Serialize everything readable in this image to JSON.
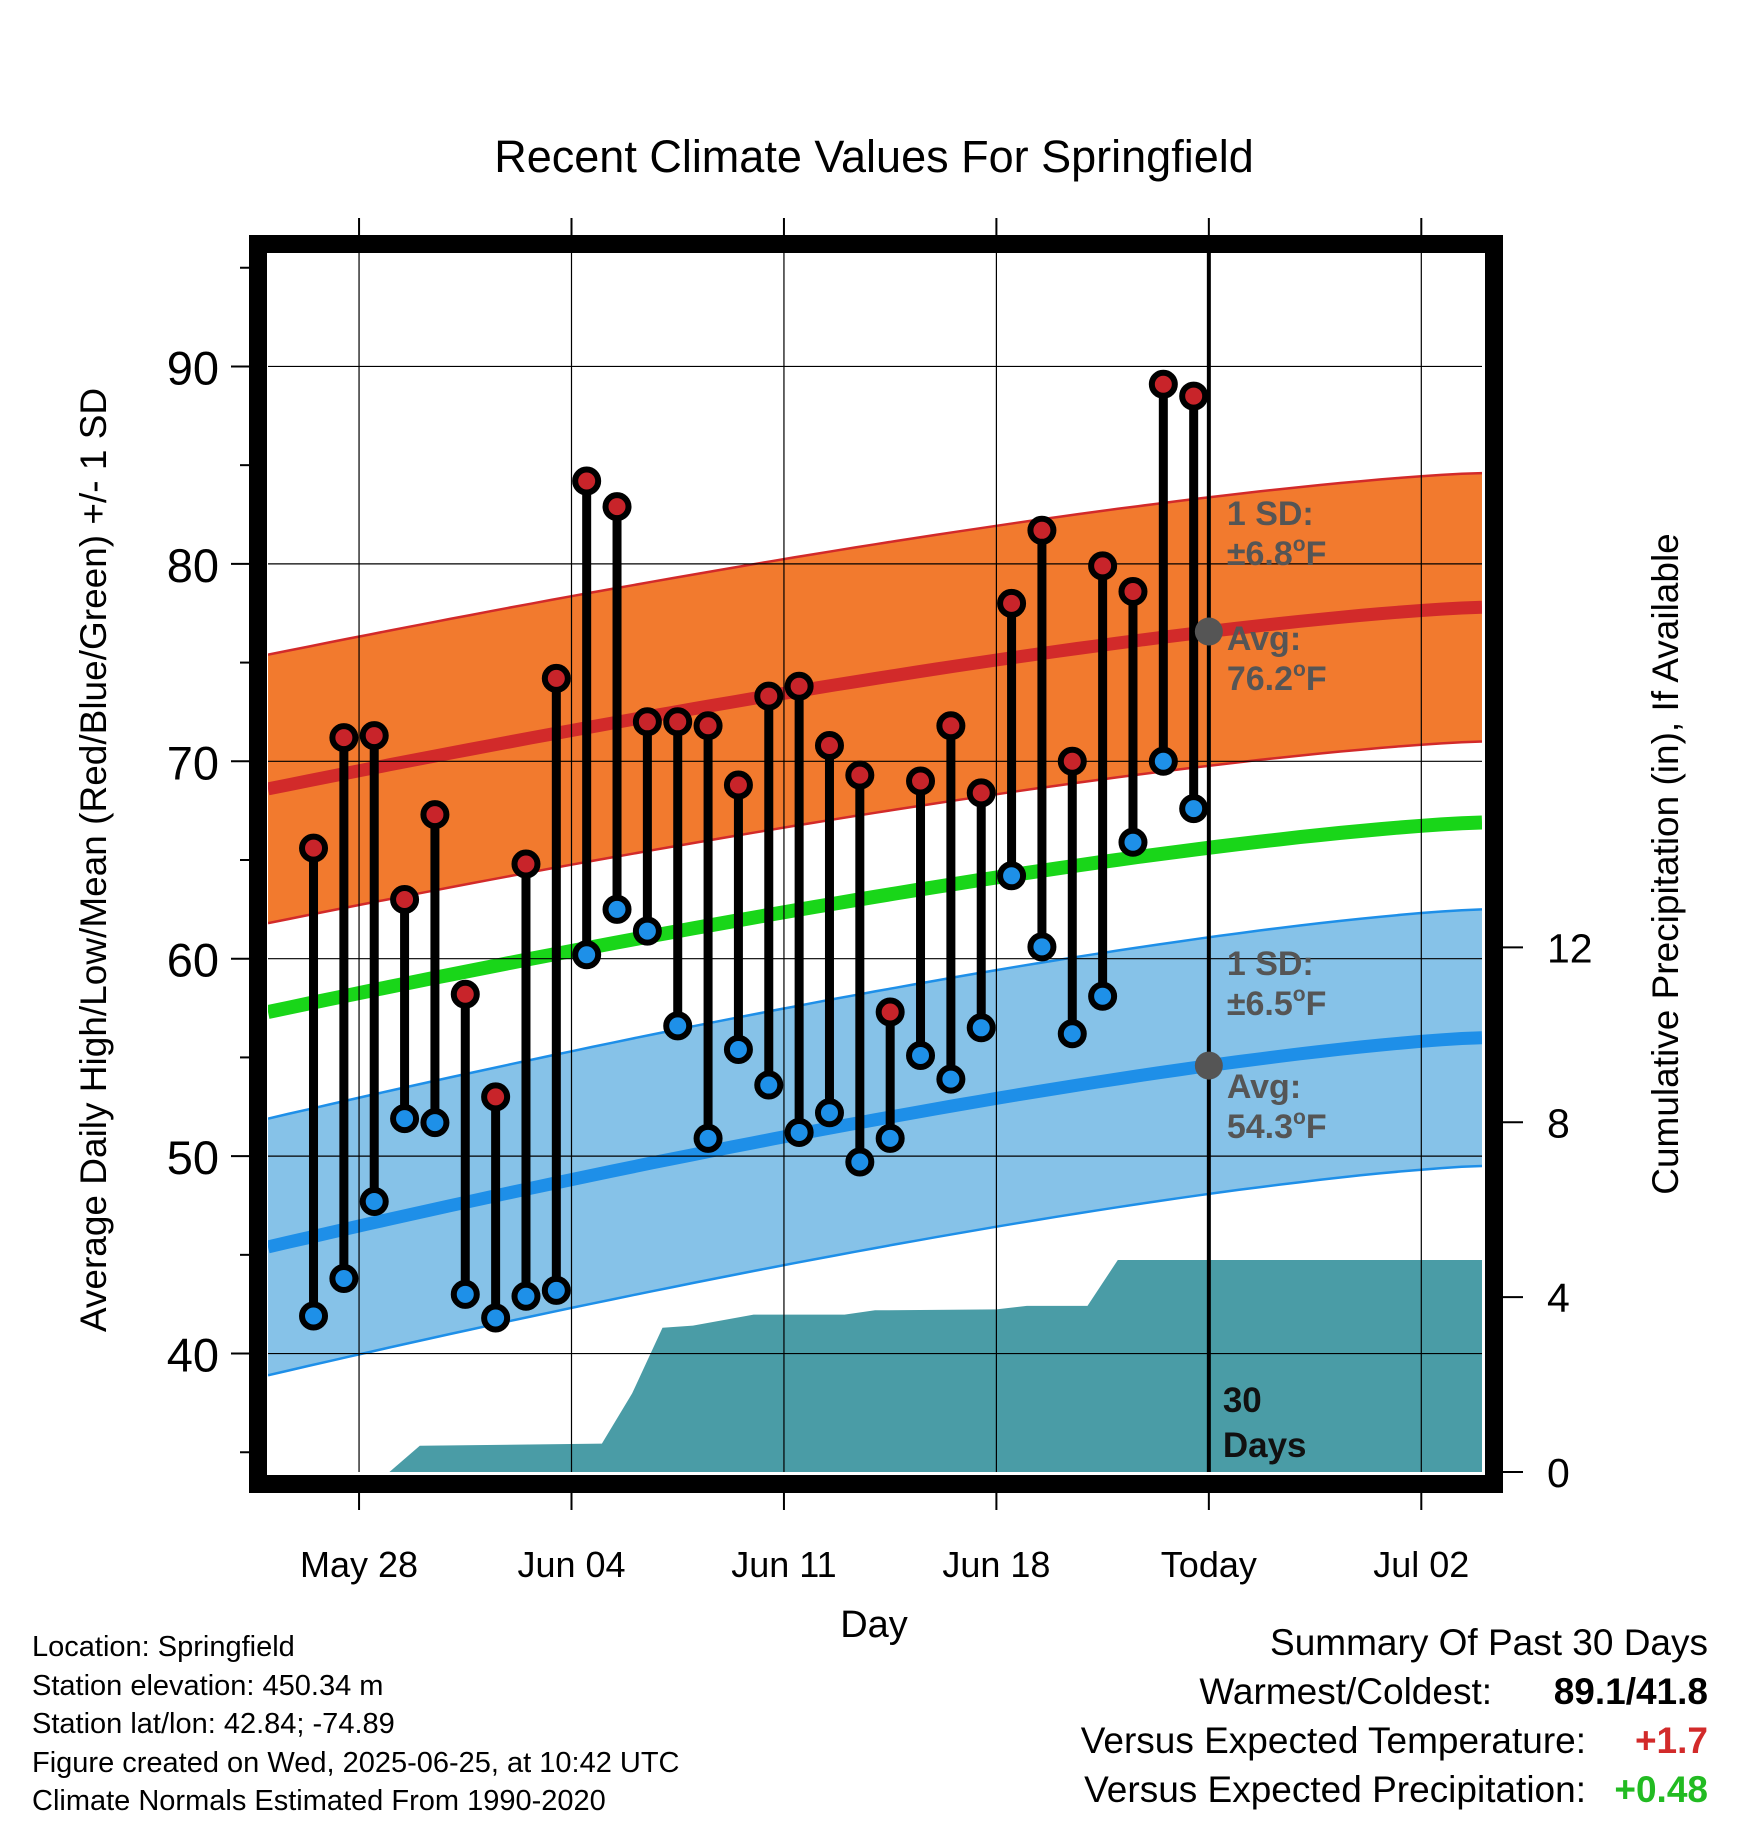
{
  "chart_data": {
    "type": "line",
    "title": "Recent Climate Values For Springfield",
    "xlabel": "Day",
    "ylabel_left": "Average Daily High/Low/Mean (Red/Blue/Green) +/- 1 SD",
    "ylabel_right": "Cumulative Precipitation (in), If Available",
    "xlim": [
      "2025-05-25",
      "2025-07-04"
    ],
    "ylim_left": [
      34,
      96
    ],
    "ylim_right": [
      0,
      28
    ],
    "x_ticks": [
      {
        "date": "2025-05-28",
        "label": "May 28"
      },
      {
        "date": "2025-06-04",
        "label": "Jun 04"
      },
      {
        "date": "2025-06-11",
        "label": "Jun 11"
      },
      {
        "date": "2025-06-18",
        "label": "Jun 18"
      },
      {
        "date": "2025-06-25",
        "label": "Today"
      },
      {
        "date": "2025-07-02",
        "label": "Jul 02"
      }
    ],
    "y_ticks_left": [
      40,
      50,
      60,
      70,
      80,
      90
    ],
    "y_ticks_right": [
      0,
      4,
      8,
      12
    ],
    "grid": true,
    "today": "2025-06-25",
    "normals": {
      "start": "2025-05-25",
      "end": "2025-07-04",
      "high_avg": [
        68.6,
        77.8
      ],
      "high_sd": 6.8,
      "low_avg": [
        45.4,
        56.0
      ],
      "low_sd": 6.5,
      "mean_avg": [
        57.3,
        66.9
      ]
    },
    "daily": [
      {
        "date": "2025-05-26",
        "high": 65.6,
        "low": 41.9
      },
      {
        "date": "2025-05-27",
        "high": 71.2,
        "low": 43.8
      },
      {
        "date": "2025-05-28",
        "high": 71.3,
        "low": 47.7
      },
      {
        "date": "2025-05-29",
        "high": 63.0,
        "low": 51.9
      },
      {
        "date": "2025-05-30",
        "high": 67.3,
        "low": 51.7
      },
      {
        "date": "2025-05-31",
        "high": 58.2,
        "low": 43.0
      },
      {
        "date": "2025-06-01",
        "high": 53.0,
        "low": 41.8
      },
      {
        "date": "2025-06-02",
        "high": 64.8,
        "low": 42.9
      },
      {
        "date": "2025-06-03",
        "high": 74.2,
        "low": 43.2
      },
      {
        "date": "2025-06-04",
        "high": 84.2,
        "low": 60.2
      },
      {
        "date": "2025-06-05",
        "high": 82.9,
        "low": 62.5
      },
      {
        "date": "2025-06-06",
        "high": 72.0,
        "low": 61.4
      },
      {
        "date": "2025-06-07",
        "high": 72.0,
        "low": 56.6
      },
      {
        "date": "2025-06-08",
        "high": 71.8,
        "low": 50.9
      },
      {
        "date": "2025-06-09",
        "high": 68.8,
        "low": 55.4
      },
      {
        "date": "2025-06-10",
        "high": 73.3,
        "low": 53.6
      },
      {
        "date": "2025-06-11",
        "high": 73.8,
        "low": 51.2
      },
      {
        "date": "2025-06-12",
        "high": 70.8,
        "low": 52.2
      },
      {
        "date": "2025-06-13",
        "high": 69.3,
        "low": 49.7
      },
      {
        "date": "2025-06-14",
        "high": 57.3,
        "low": 50.9
      },
      {
        "date": "2025-06-15",
        "high": 69.0,
        "low": 55.1
      },
      {
        "date": "2025-06-16",
        "high": 71.8,
        "low": 53.9
      },
      {
        "date": "2025-06-17",
        "high": 68.4,
        "low": 56.5
      },
      {
        "date": "2025-06-18",
        "high": 78.0,
        "low": 64.2
      },
      {
        "date": "2025-06-19",
        "high": 81.7,
        "low": 60.6
      },
      {
        "date": "2025-06-20",
        "high": 70.0,
        "low": 56.2
      },
      {
        "date": "2025-06-21",
        "high": 79.9,
        "low": 58.1
      },
      {
        "date": "2025-06-22",
        "high": 78.6,
        "low": 65.9
      },
      {
        "date": "2025-06-23",
        "high": 89.1,
        "low": 70.0
      },
      {
        "date": "2025-06-24",
        "high": 88.5,
        "low": 67.6
      }
    ],
    "cumulative_precip": [
      {
        "date": "2025-05-25",
        "value": 0.0
      },
      {
        "date": "2025-05-29",
        "value": 0.0
      },
      {
        "date": "2025-05-30",
        "value": 0.6
      },
      {
        "date": "2025-06-05",
        "value": 0.65
      },
      {
        "date": "2025-06-06",
        "value": 1.8
      },
      {
        "date": "2025-06-07",
        "value": 3.3
      },
      {
        "date": "2025-06-08",
        "value": 3.35
      },
      {
        "date": "2025-06-10",
        "value": 3.6
      },
      {
        "date": "2025-06-13",
        "value": 3.6
      },
      {
        "date": "2025-06-14",
        "value": 3.7
      },
      {
        "date": "2025-06-18",
        "value": 3.72
      },
      {
        "date": "2025-06-19",
        "value": 3.8
      },
      {
        "date": "2025-06-21",
        "value": 3.8
      },
      {
        "date": "2025-06-22",
        "value": 4.85
      },
      {
        "date": "2025-07-04",
        "value": 4.85
      }
    ],
    "annotations": {
      "high_sd_title": "1 SD:",
      "high_sd_value": "±6.8",
      "high_avg_title": "Avg:",
      "high_avg_value": "76.2",
      "low_sd_title": "1 SD:",
      "low_sd_value": "±6.5",
      "low_avg_title": "Avg:",
      "low_avg_value": "54.3",
      "unit_degree": "o",
      "unit_letter": "F",
      "days_number": "30",
      "days_word": "Days"
    },
    "colors": {
      "high_band": "#f27a2e",
      "high_line": "#d22a2a",
      "low_band": "#86c2e8",
      "low_line": "#1e8fe8",
      "mean_line": "#19d619",
      "precip": "#4a9ca6",
      "marker_high": "#c8242a",
      "marker_low": "#1e90e8",
      "annotation_text": "#555555"
    }
  },
  "footer_left": {
    "location": "Location: Springfield",
    "elevation": "Station elevation: 450.34 m",
    "latlon": "Station lat/lon: 42.84; -74.89",
    "created": "Figure created on Wed, 2025-06-25, at 10:42 UTC",
    "normals": "Climate Normals Estimated From 1990-2020"
  },
  "summary": {
    "heading": "Summary Of Past 30 Days",
    "warmest_label": "Warmest/Coldest:",
    "warmest_value": "89.1/41.8",
    "temp_label": "Versus Expected Temperature:",
    "temp_value": "+1.7",
    "temp_color": "#d22a2a",
    "precip_label": "Versus Expected Precipitation:",
    "precip_value": "+0.48",
    "precip_color": "#22bb22"
  }
}
